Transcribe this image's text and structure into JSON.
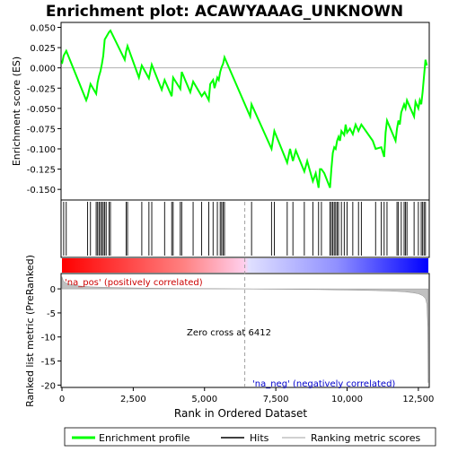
{
  "chart_data": {
    "type": "line",
    "title": "Enrichment plot: ACAWYAAAG_UNKNOWN",
    "xlabel": "Rank in Ordered Dataset",
    "x_ticks": [
      0,
      2500,
      5000,
      7500,
      10000,
      12500
    ],
    "x_tick_labels": [
      "0",
      "2,500",
      "5,000",
      "7,500",
      "10,000",
      "12,500"
    ],
    "xlim": [
      0,
      12850
    ],
    "top_panel": {
      "ylabel": "Enrichment score (ES)",
      "ylim": [
        -0.162,
        0.055
      ],
      "y_ticks": [
        0.05,
        0.025,
        0.0,
        -0.025,
        -0.05,
        -0.075,
        -0.1,
        -0.125,
        -0.15
      ],
      "y_tick_labels": [
        "0.050",
        "0.025",
        "0.000",
        "-0.025",
        "-0.050",
        "-0.075",
        "-0.100",
        "-0.125",
        "-0.150"
      ],
      "series_name": "Enrichment profile",
      "color": "#00ff00",
      "x": [
        0,
        60,
        150,
        850,
        900,
        1000,
        1200,
        1250,
        1300,
        1350,
        1400,
        1450,
        1500,
        1550,
        1650,
        1700,
        2200,
        2250,
        2300,
        2700,
        2800,
        3050,
        3150,
        3500,
        3600,
        3850,
        3900,
        4150,
        4200,
        4500,
        4600,
        4900,
        5000,
        5150,
        5200,
        5300,
        5350,
        5450,
        5500,
        5550,
        5600,
        5650,
        5700,
        6600,
        6650,
        7350,
        7450,
        7900,
        8000,
        8100,
        8200,
        8500,
        8600,
        8800,
        8900,
        9000,
        9050,
        9100,
        9200,
        9400,
        9450,
        9500,
        9550,
        9600,
        9650,
        9700,
        9750,
        9800,
        9900,
        9950,
        10000,
        10100,
        10200,
        10300,
        10400,
        10500,
        10900,
        11000,
        11200,
        11300,
        11350,
        11400,
        11700,
        11750,
        11800,
        11850,
        11900,
        12000,
        12050,
        12100,
        12350,
        12400,
        12500,
        12550,
        12600,
        12650,
        12700,
        12750,
        12800
      ],
      "y": [
        0.005,
        0.015,
        0.021,
        -0.04,
        -0.035,
        -0.02,
        -0.032,
        -0.018,
        -0.01,
        -0.004,
        0.005,
        0.015,
        0.035,
        0.038,
        0.044,
        0.046,
        0.01,
        0.02,
        0.027,
        -0.012,
        0.003,
        -0.013,
        0.004,
        -0.027,
        -0.015,
        -0.035,
        -0.012,
        -0.026,
        -0.005,
        -0.03,
        -0.017,
        -0.035,
        -0.03,
        -0.04,
        -0.02,
        -0.015,
        -0.025,
        -0.012,
        -0.015,
        -0.005,
        0.001,
        0.005,
        0.013,
        -0.06,
        -0.045,
        -0.1,
        -0.078,
        -0.117,
        -0.1,
        -0.115,
        -0.102,
        -0.128,
        -0.115,
        -0.14,
        -0.13,
        -0.148,
        -0.125,
        -0.125,
        -0.13,
        -0.148,
        -0.125,
        -0.105,
        -0.098,
        -0.1,
        -0.09,
        -0.085,
        -0.09,
        -0.078,
        -0.083,
        -0.07,
        -0.08,
        -0.075,
        -0.082,
        -0.07,
        -0.078,
        -0.07,
        -0.09,
        -0.1,
        -0.098,
        -0.11,
        -0.08,
        -0.065,
        -0.09,
        -0.075,
        -0.065,
        -0.07,
        -0.055,
        -0.045,
        -0.05,
        -0.04,
        -0.06,
        -0.042,
        -0.05,
        -0.04,
        -0.045,
        -0.03,
        -0.01,
        0.01,
        0.003
      ]
    },
    "hits_panel": {
      "series_name": "Hits",
      "x": [
        60,
        150,
        900,
        1000,
        1200,
        1250,
        1300,
        1350,
        1400,
        1450,
        1500,
        1550,
        1650,
        1700,
        2250,
        2300,
        2800,
        3050,
        3150,
        3600,
        3850,
        3900,
        4150,
        4200,
        4600,
        4900,
        5150,
        5300,
        5450,
        5550,
        5600,
        5650,
        5700,
        6650,
        7350,
        7450,
        7900,
        8100,
        8500,
        8800,
        9000,
        9100,
        9400,
        9450,
        9500,
        9550,
        9600,
        9650,
        9700,
        9800,
        9900,
        10000,
        10200,
        10400,
        10500,
        11000,
        11200,
        11300,
        11400,
        11750,
        11800,
        11900,
        12000,
        12050,
        12100,
        12350,
        12500,
        12600,
        12650,
        12700,
        12750
      ]
    },
    "rank_panel": {
      "ylabel": "Ranked list metric (PreRanked)",
      "series_name": "Ranking metric scores",
      "ylim": [
        -20.3,
        3.0
      ],
      "y_ticks": [
        0,
        -5,
        -10,
        -15,
        -20
      ],
      "y_tick_labels": [
        "0",
        "-5",
        "-10",
        "-15",
        "-20"
      ],
      "x": [
        0,
        50,
        150,
        300,
        600,
        1000,
        2000,
        3000,
        4000,
        5000,
        6000,
        6412,
        7000,
        8000,
        9000,
        10000,
        11000,
        11500,
        12000,
        12300,
        12500,
        12650,
        12750,
        12800,
        12830,
        12845
      ],
      "y": [
        2.5,
        1.6,
        1.2,
        0.9,
        0.6,
        0.4,
        0.25,
        0.15,
        0.1,
        0.05,
        0.02,
        0.0,
        -0.05,
        -0.1,
        -0.15,
        -0.25,
        -0.35,
        -0.45,
        -0.6,
        -0.8,
        -1.0,
        -1.4,
        -2.0,
        -3.2,
        -8.0,
        -19.5
      ],
      "zero_cross_x": 6412,
      "zero_cross_label": "Zero cross at 6412",
      "pos_label": "'na_pos' (positively correlated)",
      "neg_label": "'na_neg' (negatively correlated)"
    },
    "legend": {
      "placement": "bottom",
      "entries": [
        "Enrichment profile",
        "Hits",
        "Ranking metric scores"
      ]
    }
  }
}
